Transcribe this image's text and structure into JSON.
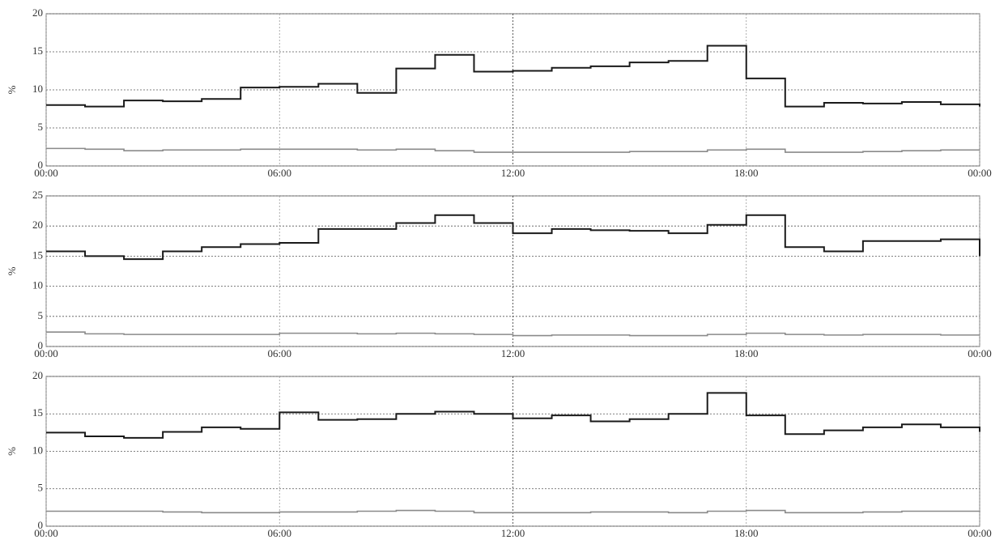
{
  "chart_data": [
    {
      "type": "line",
      "ylabel": "%",
      "grid": true,
      "step": true,
      "x": [
        0,
        1,
        2,
        3,
        4,
        5,
        6,
        7,
        8,
        9,
        10,
        11,
        12,
        13,
        14,
        15,
        16,
        17,
        18,
        19,
        20,
        21,
        22,
        23,
        24
      ],
      "xlim": [
        0,
        24
      ],
      "xticks": [
        {
          "value": 0,
          "label": "00:00"
        },
        {
          "value": 6,
          "label": "06:00"
        },
        {
          "value": 12,
          "label": "12:00"
        },
        {
          "value": 18,
          "label": "18:00"
        },
        {
          "value": 24,
          "label": "00:00"
        }
      ],
      "ylim": [
        0,
        20
      ],
      "yticks": [
        0,
        5,
        10,
        15,
        20
      ],
      "series": [
        {
          "color": "#1a1a1a",
          "values": [
            8,
            7.8,
            8.6,
            8.5,
            8.8,
            10.3,
            10.4,
            10.8,
            9.6,
            12.8,
            14.6,
            12.4,
            12.5,
            12.9,
            13.1,
            13.6,
            13.8,
            15.8,
            11.5,
            7.8,
            8.3,
            8.2,
            8.4,
            8.1,
            7.8
          ]
        },
        {
          "color": "#8a8a8a",
          "values": [
            2.3,
            2.2,
            2,
            2.1,
            2.1,
            2.2,
            2.2,
            2.2,
            2.1,
            2.2,
            2,
            1.8,
            1.8,
            1.8,
            1.8,
            1.9,
            1.9,
            2.1,
            2.2,
            1.8,
            1.8,
            1.9,
            2,
            2.1,
            2.1
          ]
        }
      ]
    },
    {
      "type": "line",
      "ylabel": "%",
      "grid": true,
      "step": true,
      "x": [
        0,
        1,
        2,
        3,
        4,
        5,
        6,
        7,
        8,
        9,
        10,
        11,
        12,
        13,
        14,
        15,
        16,
        17,
        18,
        19,
        20,
        21,
        22,
        23,
        24
      ],
      "xlim": [
        0,
        24
      ],
      "xticks": [
        {
          "value": 0,
          "label": "00:00"
        },
        {
          "value": 6,
          "label": "06:00"
        },
        {
          "value": 12,
          "label": "12:00"
        },
        {
          "value": 18,
          "label": "18:00"
        },
        {
          "value": 24,
          "label": "00:00"
        }
      ],
      "ylim": [
        0,
        25
      ],
      "yticks": [
        0,
        5,
        10,
        15,
        20,
        25
      ],
      "series": [
        {
          "color": "#1a1a1a",
          "values": [
            15.8,
            15,
            14.5,
            15.8,
            16.5,
            17,
            17.2,
            19.5,
            19.5,
            20.5,
            21.8,
            20.5,
            18.8,
            19.5,
            19.3,
            19.2,
            18.8,
            20.2,
            21.8,
            16.5,
            15.8,
            17.5,
            17.5,
            17.8,
            15
          ]
        },
        {
          "color": "#8a8a8a",
          "values": [
            2.4,
            2.1,
            2,
            2,
            2,
            2,
            2.2,
            2.2,
            2.1,
            2.2,
            2.1,
            2,
            1.8,
            1.9,
            1.9,
            1.8,
            1.8,
            2,
            2.2,
            2,
            1.9,
            2,
            2,
            1.9,
            1.9
          ]
        }
      ]
    },
    {
      "type": "line",
      "ylabel": "%",
      "grid": true,
      "step": true,
      "x": [
        0,
        1,
        2,
        3,
        4,
        5,
        6,
        7,
        8,
        9,
        10,
        11,
        12,
        13,
        14,
        15,
        16,
        17,
        18,
        19,
        20,
        21,
        22,
        23,
        24
      ],
      "xlim": [
        0,
        24
      ],
      "xticks": [
        {
          "value": 0,
          "label": "00:00"
        },
        {
          "value": 6,
          "label": "06:00"
        },
        {
          "value": 12,
          "label": "12:00"
        },
        {
          "value": 18,
          "label": "18:00"
        },
        {
          "value": 24,
          "label": "00:00"
        }
      ],
      "ylim": [
        0,
        20
      ],
      "yticks": [
        0,
        5,
        10,
        15,
        20
      ],
      "series": [
        {
          "color": "#1a1a1a",
          "values": [
            12.5,
            12,
            11.8,
            12.6,
            13.2,
            13,
            15.2,
            14.2,
            14.3,
            15,
            15.3,
            15,
            14.4,
            14.8,
            14,
            14.3,
            15,
            17.8,
            14.8,
            12.3,
            12.8,
            13.2,
            13.6,
            13.2,
            12.6
          ]
        },
        {
          "color": "#8a8a8a",
          "values": [
            2,
            2,
            2,
            1.9,
            1.8,
            1.8,
            1.9,
            1.9,
            2,
            2.1,
            2,
            1.8,
            1.8,
            1.8,
            1.9,
            1.9,
            1.8,
            2,
            2.1,
            1.8,
            1.8,
            1.9,
            2,
            2,
            1.9
          ]
        }
      ]
    }
  ]
}
